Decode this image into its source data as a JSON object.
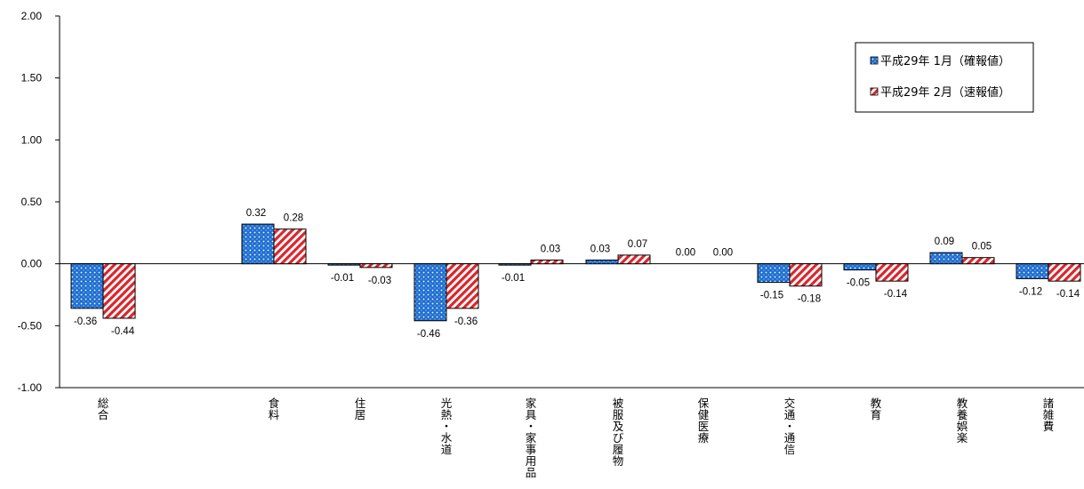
{
  "chart_data": {
    "type": "bar",
    "categories": [
      "総合",
      "食料",
      "住居",
      "光熱・水道",
      "家具・家事用品",
      "被服及び履物",
      "保健医療",
      "交通・通信",
      "教育",
      "教養娯楽",
      "諸雑費"
    ],
    "series": [
      {
        "name": "平成29年 1月（確報値）",
        "values": [
          -0.36,
          0.32,
          -0.01,
          -0.46,
          -0.01,
          0.03,
          0.0,
          -0.15,
          -0.05,
          0.09,
          -0.12
        ],
        "color": "#1f6fd1",
        "pattern": "dots"
      },
      {
        "name": "平成29年 2月（速報値）",
        "values": [
          -0.44,
          0.28,
          -0.03,
          -0.36,
          0.03,
          0.07,
          0.0,
          -0.18,
          -0.14,
          0.05,
          -0.14
        ],
        "color": "#d9262c",
        "pattern": "diagonal-stripes"
      }
    ],
    "data_labels": {
      "s1": [
        "-0.36",
        "0.32",
        "-0.01",
        "-0.46",
        "-0.01",
        "0.03",
        "0.00",
        "-0.15",
        "-0.05",
        "0.09",
        "-0.12"
      ],
      "s2": [
        "-0.44",
        "0.28",
        "-0.03",
        "-0.36",
        "0.03",
        "0.07",
        "0.00",
        "-0.18",
        "-0.14",
        "0.05",
        "-0.14"
      ]
    },
    "yticks": [
      "2.00",
      "1.50",
      "1.00",
      "0.50",
      "0.00",
      "-0.50",
      "-1.00"
    ],
    "ylim": [
      -1.0,
      2.0
    ],
    "legend": {
      "position": "top-right"
    },
    "grid": false
  }
}
